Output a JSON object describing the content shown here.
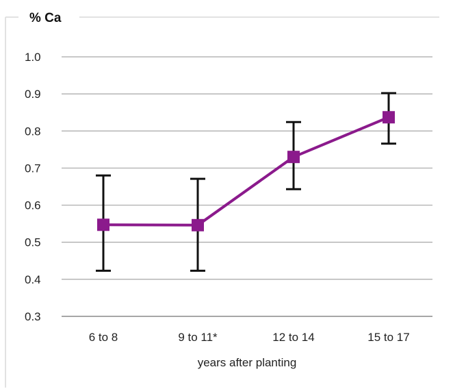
{
  "chart_data": {
    "type": "line",
    "title": "% Ca",
    "xlabel": "years after planting",
    "ylabel": "",
    "categories": [
      "6 to 8",
      "9 to 11*",
      "12 to 14",
      "15 to 17"
    ],
    "series": [
      {
        "values": [
          0.547,
          0.546,
          0.73,
          0.837
        ],
        "error_low": [
          0.423,
          0.423,
          0.643,
          0.766
        ],
        "error_high": [
          0.68,
          0.671,
          0.824,
          0.902
        ]
      }
    ],
    "ylim": [
      0.3,
      1.0
    ],
    "yticks": [
      "1.0",
      "0.9",
      "0.8",
      "0.7",
      "0.6",
      "0.5",
      "0.4",
      "0.3"
    ],
    "grid": true,
    "colors": {
      "series": "#8b1a8c",
      "error_bars": "#111111",
      "grid": "#a6a6a6",
      "frame": "#d9d9d9"
    }
  }
}
